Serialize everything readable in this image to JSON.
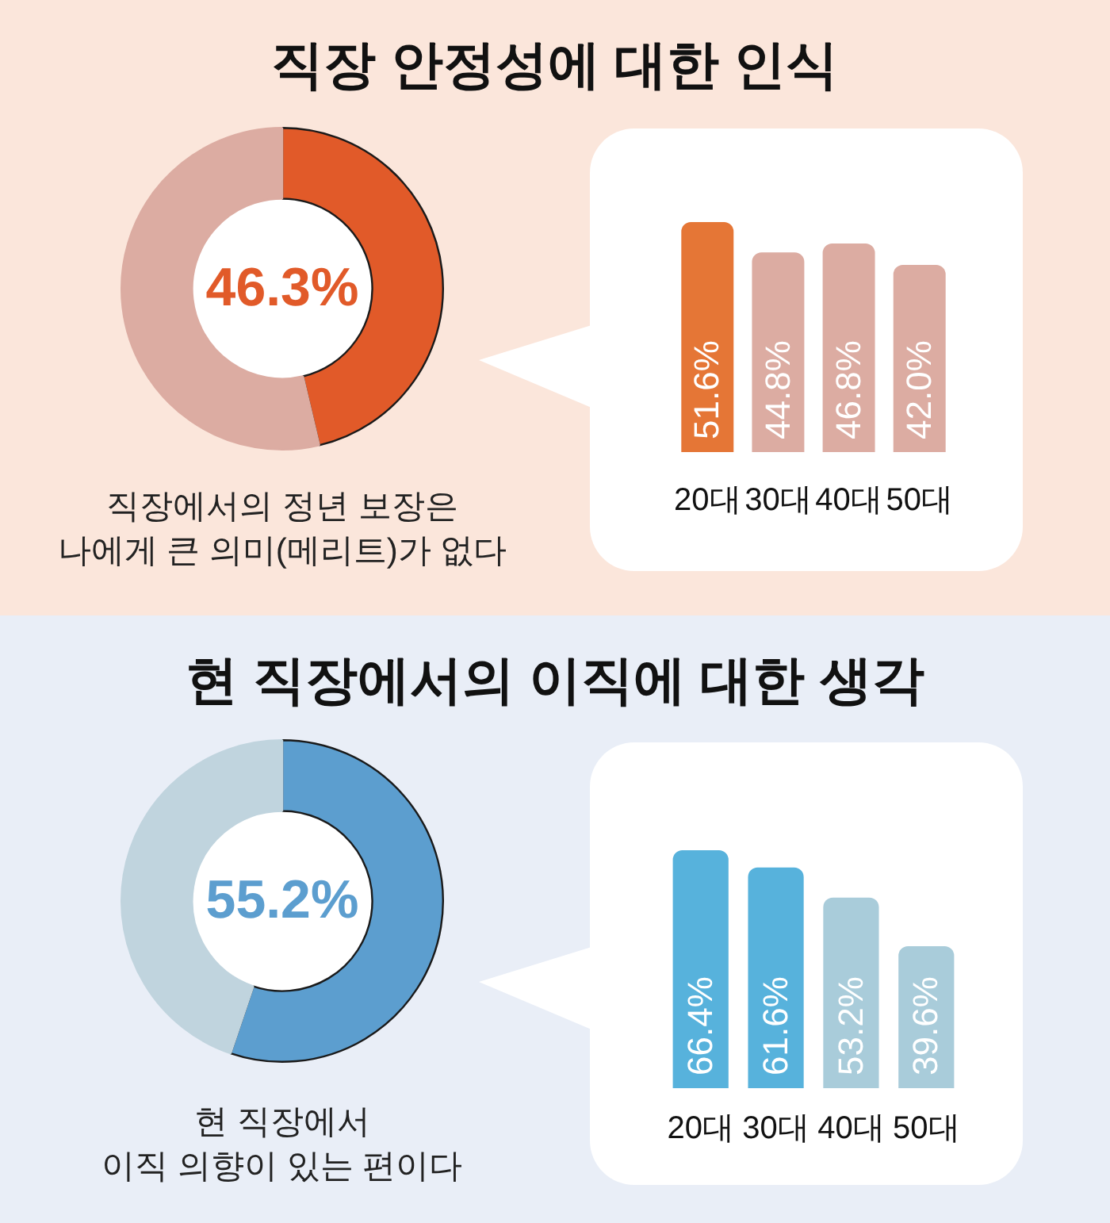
{
  "chart_data": [
    {
      "type": "donut",
      "title": "직장 안정성에 대한 인식",
      "categories": [
        null,
        null
      ],
      "values": [
        46.3,
        53.7
      ],
      "colors": [
        "#e15a29",
        "#dcaca2"
      ],
      "value_labels": [
        "46.3%",
        null
      ],
      "annotations": [
        "직장에서의 정년 보장은\n나에게 큰 의미(메리트)가 없다"
      ]
    },
    {
      "type": "bar",
      "categories": [
        "20대",
        "30대",
        "40대",
        "50대"
      ],
      "values": [
        51.6,
        44.8,
        46.8,
        42.0
      ],
      "colors": [
        "#e57636",
        "#dcaca2",
        "#dcaca2",
        "#dcaca2"
      ],
      "value_labels": [
        "51.6%",
        "44.8%",
        "46.8%",
        "42.0%"
      ],
      "tick_labels": "x"
    },
    {
      "type": "donut",
      "title": "현 직장에서의 이직에 대한 생각",
      "categories": [
        null,
        null
      ],
      "values": [
        55.2,
        44.8
      ],
      "colors": [
        "#5c9ecf",
        "#c0d4de"
      ],
      "value_labels": [
        "55.2%",
        null
      ],
      "annotations": [
        "현 직장에서\n이직 의향이 있는 편이다"
      ]
    },
    {
      "type": "bar",
      "categories": [
        "20대",
        "30대",
        "40대",
        "50대"
      ],
      "values": [
        66.4,
        61.6,
        53.2,
        39.6
      ],
      "colors": [
        "#57b2dc",
        "#57b2dc",
        "#a9ccda",
        "#a9ccda"
      ],
      "value_labels": [
        "66.4%",
        "61.6%",
        "53.2%",
        "39.6%"
      ],
      "tick_labels": "x"
    }
  ]
}
